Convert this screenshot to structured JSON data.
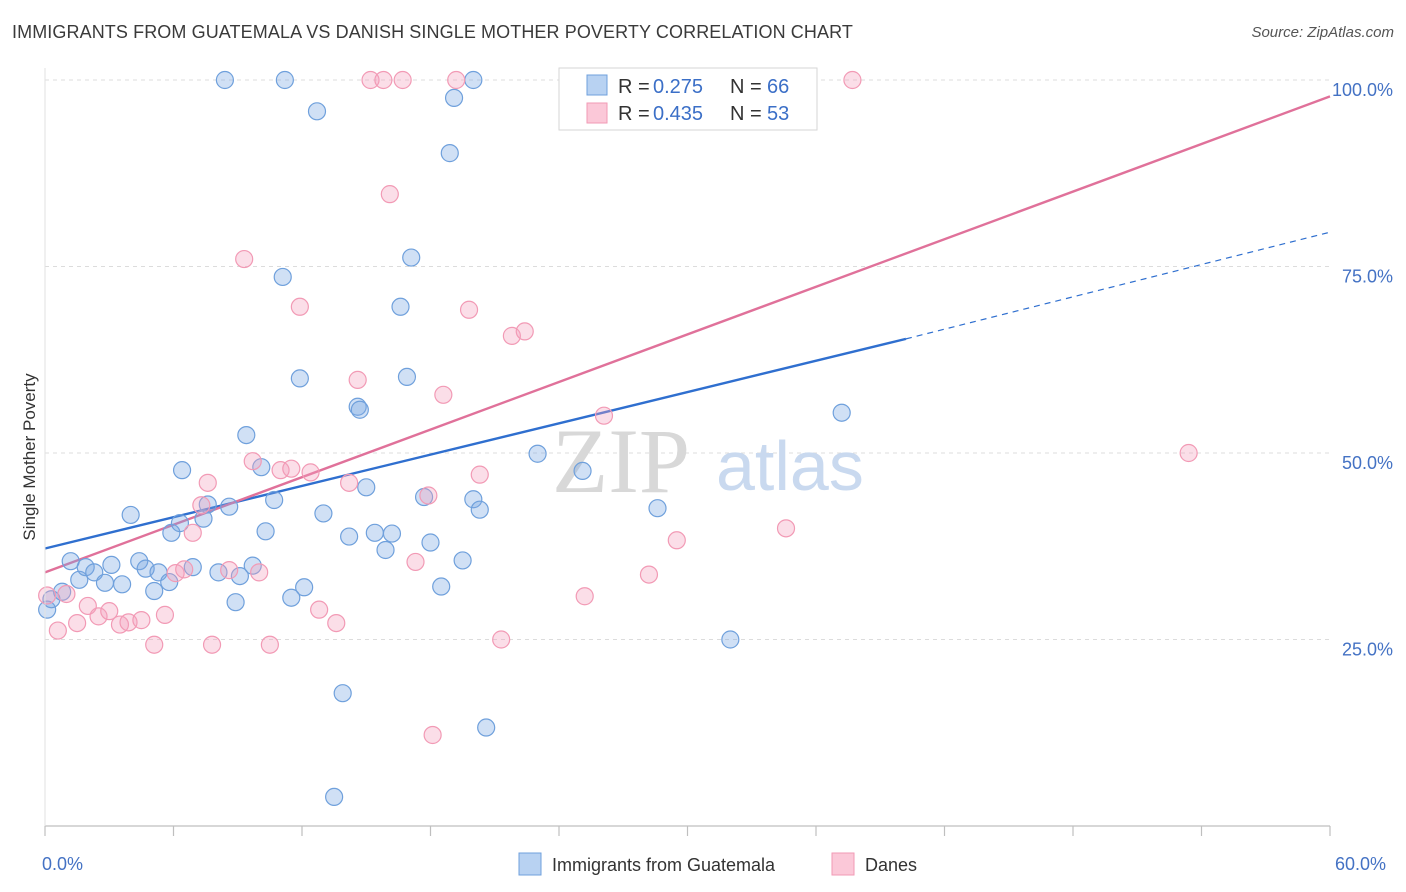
{
  "header": {
    "title": "IMMIGRANTS FROM GUATEMALA VS DANISH SINGLE MOTHER POVERTY CORRELATION CHART",
    "source": "Source: ZipAtlas.com"
  },
  "watermark": {
    "zip": "ZIP",
    "atlas": "atlas"
  },
  "chart_data": {
    "type": "scatter",
    "title": "IMMIGRANTS FROM GUATEMALA VS DANISH SINGLE MOTHER POVERTY CORRELATION CHART",
    "xlabel": "",
    "ylabel": "Single Mother Poverty",
    "xlim": [
      0,
      60
    ],
    "ylim": [
      0,
      100
    ],
    "x_tick_labels": [
      "0.0%",
      "60.0%"
    ],
    "y_tick_labels": [
      "25.0%",
      "50.0%",
      "75.0%",
      "100.0%"
    ],
    "y_ticks": [
      25,
      50,
      75,
      100
    ],
    "grid": true,
    "legend_top": [
      {
        "r_label": "R =",
        "r_value": "0.275",
        "n_label": "N =",
        "n_value": "66"
      },
      {
        "r_label": "R =",
        "r_value": "0.435",
        "n_label": "N =",
        "n_value": "53"
      }
    ],
    "series": [
      {
        "name": "Immigrants from Guatemala",
        "color": "#6fa0dc",
        "trend_color": "#2f6fcf",
        "trend": {
          "x0": 0,
          "y0": 37.2,
          "x1": 40.2,
          "y1": 65.3,
          "dash_to_x": 60,
          "dash_to_y": 79.6
        },
        "points": [
          [
            0.1,
            29.0
          ],
          [
            0.3,
            30.4
          ],
          [
            0.8,
            31.4
          ],
          [
            1.2,
            35.5
          ],
          [
            1.6,
            33.0
          ],
          [
            1.9,
            34.7
          ],
          [
            2.3,
            34.0
          ],
          [
            2.8,
            32.6
          ],
          [
            3.1,
            35.0
          ],
          [
            3.6,
            32.4
          ],
          [
            4.0,
            41.7
          ],
          [
            4.4,
            35.5
          ],
          [
            4.7,
            34.5
          ],
          [
            5.1,
            31.5
          ],
          [
            5.3,
            34.0
          ],
          [
            5.8,
            32.7
          ],
          [
            5.9,
            39.3
          ],
          [
            6.3,
            40.6
          ],
          [
            6.4,
            47.7
          ],
          [
            6.9,
            34.7
          ],
          [
            7.4,
            41.2
          ],
          [
            7.6,
            43.1
          ],
          [
            8.1,
            34.0
          ],
          [
            8.6,
            42.8
          ],
          [
            8.9,
            30.0
          ],
          [
            9.1,
            33.5
          ],
          [
            9.4,
            52.4
          ],
          [
            9.7,
            34.9
          ],
          [
            10.1,
            48.1
          ],
          [
            10.3,
            39.5
          ],
          [
            10.7,
            43.7
          ],
          [
            11.1,
            73.6
          ],
          [
            11.5,
            30.6
          ],
          [
            11.9,
            60.0
          ],
          [
            12.1,
            32.0
          ],
          [
            13.0,
            41.9
          ],
          [
            13.5,
            3.9
          ],
          [
            13.9,
            17.8
          ],
          [
            14.2,
            38.8
          ],
          [
            14.6,
            56.2
          ],
          [
            14.7,
            55.8
          ],
          [
            15.0,
            45.4
          ],
          [
            15.4,
            39.3
          ],
          [
            15.9,
            37.0
          ],
          [
            16.2,
            39.2
          ],
          [
            16.6,
            69.6
          ],
          [
            16.9,
            60.2
          ],
          [
            17.1,
            76.2
          ],
          [
            17.7,
            44.1
          ],
          [
            18.0,
            38.0
          ],
          [
            18.5,
            32.1
          ],
          [
            18.9,
            90.2
          ],
          [
            19.1,
            97.6
          ],
          [
            19.5,
            35.6
          ],
          [
            20.0,
            43.8
          ],
          [
            20.3,
            42.4
          ],
          [
            20.6,
            13.2
          ],
          [
            23.0,
            49.9
          ],
          [
            25.1,
            47.6
          ],
          [
            28.6,
            42.6
          ],
          [
            32.0,
            25.0
          ],
          [
            37.2,
            55.4
          ],
          [
            8.4,
            100.0
          ],
          [
            11.2,
            100.0
          ],
          [
            12.7,
            95.8
          ],
          [
            20.0,
            100.0
          ]
        ]
      },
      {
        "name": "Danes",
        "color": "#f29ab5",
        "trend_color": "#e0719a",
        "trend": {
          "x0": 0,
          "y0": 34.0,
          "x1": 60,
          "y1": 97.8
        },
        "points": [
          [
            0.1,
            30.9
          ],
          [
            0.6,
            26.2
          ],
          [
            1.0,
            31.1
          ],
          [
            1.5,
            27.2
          ],
          [
            2.0,
            29.5
          ],
          [
            2.5,
            28.1
          ],
          [
            3.0,
            28.8
          ],
          [
            3.5,
            27.0
          ],
          [
            3.9,
            27.3
          ],
          [
            4.5,
            27.6
          ],
          [
            5.1,
            24.3
          ],
          [
            5.6,
            28.3
          ],
          [
            6.1,
            33.9
          ],
          [
            6.5,
            34.4
          ],
          [
            6.9,
            39.3
          ],
          [
            7.3,
            43.0
          ],
          [
            7.6,
            46.0
          ],
          [
            7.8,
            24.3
          ],
          [
            8.6,
            34.3
          ],
          [
            9.3,
            76.0
          ],
          [
            9.7,
            48.9
          ],
          [
            10.0,
            34.0
          ],
          [
            10.5,
            24.3
          ],
          [
            11.0,
            47.7
          ],
          [
            11.5,
            47.9
          ],
          [
            11.9,
            69.6
          ],
          [
            12.4,
            47.4
          ],
          [
            12.8,
            29.0
          ],
          [
            13.6,
            27.2
          ],
          [
            14.2,
            46.0
          ],
          [
            14.6,
            59.8
          ],
          [
            15.2,
            100.0
          ],
          [
            15.8,
            100.0
          ],
          [
            16.1,
            84.7
          ],
          [
            16.7,
            100.0
          ],
          [
            17.3,
            35.4
          ],
          [
            17.9,
            44.3
          ],
          [
            18.1,
            12.2
          ],
          [
            18.6,
            57.8
          ],
          [
            19.2,
            100.0
          ],
          [
            19.8,
            69.2
          ],
          [
            20.3,
            47.1
          ],
          [
            21.3,
            25.0
          ],
          [
            21.8,
            65.7
          ],
          [
            22.4,
            66.3
          ],
          [
            25.2,
            30.8
          ],
          [
            26.1,
            55.0
          ],
          [
            26.8,
            100.0
          ],
          [
            28.2,
            33.7
          ],
          [
            29.5,
            38.3
          ],
          [
            34.6,
            39.9
          ],
          [
            37.7,
            100.0
          ],
          [
            53.4,
            50.0
          ]
        ]
      }
    ]
  }
}
